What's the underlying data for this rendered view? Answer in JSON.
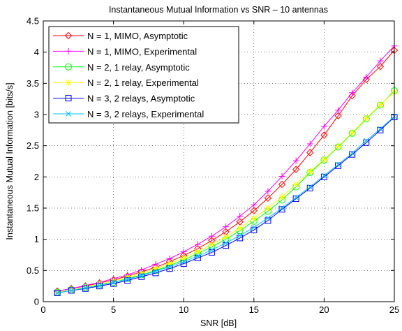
{
  "chart_data": {
    "type": "line",
    "title": "Instantaneous Mutual Information vs SNR – 10 antennas",
    "xlabel": "SNR [dB]",
    "ylabel": "Instantaneous Mutual Information [bits/s]",
    "xlim": [
      0,
      25
    ],
    "ylim": [
      0,
      4.5
    ],
    "xticks": [
      "0",
      "5",
      "10",
      "15",
      "20",
      "25"
    ],
    "yticks": [
      "0",
      "0.5",
      "1",
      "1.5",
      "2",
      "2.5",
      "3",
      "3.5",
      "4",
      "4.5"
    ],
    "grid": true,
    "legend_position": "top-left",
    "x": [
      1,
      2,
      3,
      4,
      5,
      6,
      7,
      8,
      9,
      10,
      11,
      12,
      13,
      14,
      15,
      16,
      17,
      18,
      19,
      20,
      21,
      22,
      23,
      24,
      25
    ],
    "series": [
      {
        "name": "N = 1, MIMO, Asymptotic",
        "color": "#ff0000",
        "marker": "diamond",
        "values": [
          0.17,
          0.21,
          0.25,
          0.3,
          0.35,
          0.41,
          0.48,
          0.55,
          0.64,
          0.74,
          0.85,
          0.98,
          1.12,
          1.28,
          1.46,
          1.66,
          1.88,
          2.12,
          2.39,
          2.67,
          2.98,
          3.3,
          3.56,
          3.77,
          4.03
        ]
      },
      {
        "name": "N = 1, MIMO, Experimental",
        "color": "#ff00ff",
        "marker": "plus",
        "values": [
          0.17,
          0.21,
          0.26,
          0.31,
          0.37,
          0.43,
          0.51,
          0.6,
          0.69,
          0.8,
          0.92,
          1.05,
          1.2,
          1.37,
          1.55,
          1.77,
          2.01,
          2.26,
          2.53,
          2.81,
          3.07,
          3.35,
          3.6,
          3.86,
          4.1
        ]
      },
      {
        "name": "N = 2, 1 relay, Asymptotic",
        "color": "#00ff00",
        "marker": "circle",
        "values": [
          0.15,
          0.19,
          0.23,
          0.27,
          0.31,
          0.37,
          0.43,
          0.5,
          0.58,
          0.67,
          0.77,
          0.88,
          1.0,
          1.14,
          1.29,
          1.45,
          1.63,
          1.84,
          2.07,
          2.27,
          2.48,
          2.7,
          2.93,
          3.15,
          3.38
        ]
      },
      {
        "name": "N = 2, 1 relay, Experimental",
        "color": "#ffff00",
        "marker": "star",
        "values": [
          0.15,
          0.19,
          0.23,
          0.28,
          0.33,
          0.39,
          0.45,
          0.53,
          0.61,
          0.7,
          0.8,
          0.92,
          1.04,
          1.18,
          1.34,
          1.5,
          1.68,
          1.88,
          2.09,
          2.28,
          2.49,
          2.71,
          2.94,
          3.16,
          3.36
        ]
      },
      {
        "name": "N = 3, 2 relays, Asymptotic",
        "color": "#0000ff",
        "marker": "square",
        "values": [
          0.14,
          0.18,
          0.21,
          0.25,
          0.29,
          0.34,
          0.4,
          0.46,
          0.53,
          0.61,
          0.7,
          0.79,
          0.9,
          1.02,
          1.15,
          1.3,
          1.48,
          1.65,
          1.82,
          2.0,
          2.18,
          2.36,
          2.55,
          2.75,
          2.96
        ]
      },
      {
        "name": "N = 3, 2 relays, Experimental",
        "color": "#00c0ff",
        "marker": "x",
        "values": [
          0.14,
          0.18,
          0.22,
          0.26,
          0.31,
          0.36,
          0.42,
          0.49,
          0.56,
          0.64,
          0.73,
          0.83,
          0.94,
          1.06,
          1.19,
          1.34,
          1.5,
          1.67,
          1.84,
          2.02,
          2.2,
          2.38,
          2.58,
          2.77,
          2.97
        ]
      }
    ]
  }
}
